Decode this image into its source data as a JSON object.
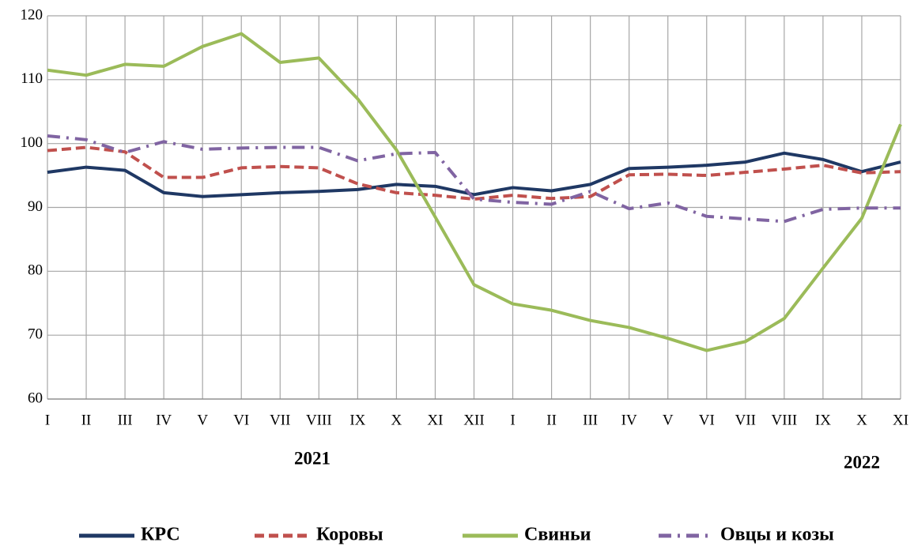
{
  "chart_data": {
    "type": "line",
    "categories": [
      "I",
      "II",
      "III",
      "IV",
      "V",
      "VI",
      "VII",
      "VIII",
      "IX",
      "X",
      "XI",
      "XII",
      "I",
      "II",
      "III",
      "IV",
      "V",
      "VI",
      "VII",
      "VIII",
      "IX",
      "X",
      "XI"
    ],
    "annotations": [
      "2021",
      "2022"
    ],
    "series": [
      {
        "name": "КРС",
        "color": "#1f3864",
        "line_style": "solid",
        "values": [
          95.5,
          96.3,
          95.8,
          92.3,
          91.7,
          92.0,
          92.3,
          92.5,
          92.8,
          93.6,
          93.3,
          92.0,
          93.1,
          92.6,
          93.6,
          96.1,
          96.3,
          96.6,
          97.1,
          98.5,
          97.5,
          95.6,
          97.1
        ]
      },
      {
        "name": "Коровы",
        "color": "#c0504d",
        "line_style": "dashed",
        "values": [
          98.9,
          99.4,
          98.7,
          94.7,
          94.7,
          96.2,
          96.4,
          96.2,
          93.7,
          92.3,
          91.9,
          91.3,
          91.9,
          91.4,
          91.7,
          95.1,
          95.2,
          95.0,
          95.5,
          96.0,
          96.6,
          95.4,
          95.6
        ]
      },
      {
        "name": "Свиньи",
        "color": "#9bbb59",
        "line_style": "solid",
        "values": [
          111.5,
          110.7,
          112.4,
          112.1,
          115.2,
          117.2,
          112.7,
          113.4,
          107.0,
          99.0,
          88.5,
          77.9,
          74.9,
          73.9,
          72.3,
          71.2,
          69.5,
          67.6,
          69.0,
          72.6,
          80.5,
          88.3,
          103.0
        ]
      },
      {
        "name": "Овцы и козы",
        "color": "#8064a2",
        "line_style": "dashdot",
        "values": [
          101.2,
          100.6,
          98.6,
          100.3,
          99.1,
          99.3,
          99.4,
          99.4,
          97.3,
          98.4,
          98.6,
          91.3,
          90.8,
          90.5,
          92.5,
          89.8,
          90.7,
          88.6,
          88.2,
          87.8,
          89.7,
          89.9,
          89.9
        ]
      }
    ],
    "ylim": [
      60,
      120
    ],
    "yticks": [
      60,
      70,
      80,
      90,
      100,
      110,
      120
    ],
    "grid": true,
    "legend": "bottom"
  }
}
